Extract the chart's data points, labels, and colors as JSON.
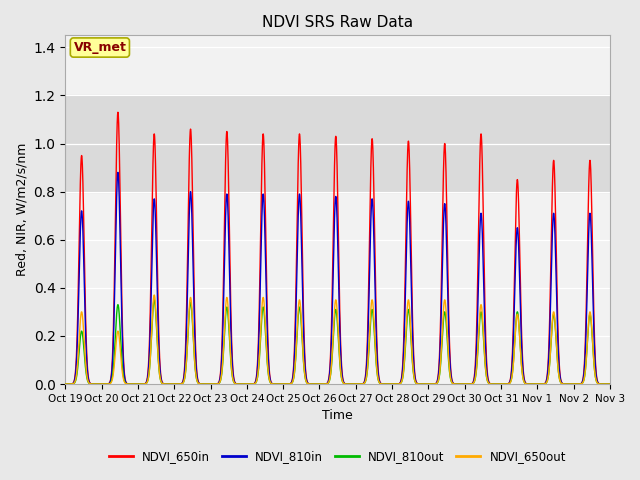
{
  "title": "NDVI SRS Raw Data",
  "xlabel": "Time",
  "ylabel": "Red, NIR, W/m2/s/nm",
  "ylim": [
    0.0,
    1.45
  ],
  "yticks": [
    0.0,
    0.2,
    0.4,
    0.6,
    0.8,
    1.0,
    1.2,
    1.4
  ],
  "background_color": "#e8e8e8",
  "plot_bg_color": "#f2f2f2",
  "legend_labels": [
    "NDVI_650in",
    "NDVI_810in",
    "NDVI_810out",
    "NDVI_650out"
  ],
  "legend_colors": [
    "#ff0000",
    "#0000cc",
    "#00bb00",
    "#ffaa00"
  ],
  "annotation_text": "VR_met",
  "annotation_color": "#880000",
  "annotation_bg": "#ffff99",
  "x_tick_labels": [
    "Oct 19",
    "Oct 20",
    "Oct 21",
    "Oct 22",
    "Oct 23",
    "Oct 24",
    "Oct 25",
    "Oct 26",
    "Oct 27",
    "Oct 28",
    "Oct 29",
    "Oct 30",
    "Oct 31",
    "Nov 1",
    "Nov 2",
    "Nov 3"
  ],
  "peaks_650in": [
    0.95,
    1.13,
    1.04,
    1.06,
    1.05,
    1.04,
    1.04,
    1.03,
    1.02,
    1.01,
    1.0,
    1.04,
    0.85,
    0.93,
    0.93
  ],
  "peaks_810in": [
    0.72,
    0.88,
    0.77,
    0.8,
    0.79,
    0.79,
    0.79,
    0.78,
    0.77,
    0.76,
    0.75,
    0.71,
    0.65,
    0.71,
    0.71
  ],
  "peaks_810out": [
    0.22,
    0.33,
    0.35,
    0.34,
    0.32,
    0.32,
    0.32,
    0.31,
    0.31,
    0.31,
    0.3,
    0.3,
    0.3,
    0.29,
    0.29
  ],
  "peaks_650out": [
    0.3,
    0.22,
    0.37,
    0.36,
    0.36,
    0.36,
    0.35,
    0.35,
    0.35,
    0.35,
    0.35,
    0.33,
    0.29,
    0.3,
    0.3
  ],
  "n_days": 15,
  "pts_per_day": 200,
  "shaded_band_low": 0.8,
  "shaded_band_high": 1.2
}
